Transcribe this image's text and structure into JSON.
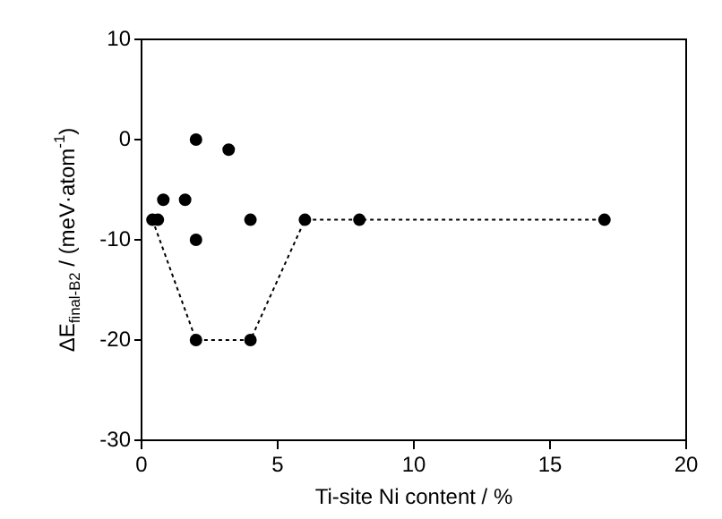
{
  "chart_data": {
    "type": "scatter",
    "xlabel": "Ti-site Ni content / %",
    "ylabel": "ΔE$_{final-B2}$ / (meV·atom$^{-1}$)",
    "xlim": [
      0,
      20
    ],
    "xticks": [
      0,
      5,
      10,
      15,
      20
    ],
    "ylim": [
      -30,
      10
    ],
    "yticks": [
      -30,
      -20,
      -10,
      0,
      10
    ],
    "grid": false,
    "legend": false,
    "series": [
      {
        "type": "scatter",
        "color": "#000000",
        "marker": "circle",
        "x": [
          0.4,
          0.6,
          0.8,
          1.6,
          2,
          2,
          2,
          3.2,
          4,
          4,
          6,
          8,
          17
        ],
        "values": [
          -8,
          -8,
          -6,
          -6,
          0,
          -10,
          -20,
          -1,
          -8,
          -20,
          -8,
          -8,
          -8
        ]
      },
      {
        "type": "line",
        "color": "#000000",
        "marker": "none",
        "line_style": "dotted",
        "x": [
          0.4,
          2,
          4,
          6,
          8,
          17
        ],
        "values": [
          -8,
          -20,
          -20,
          -8,
          -8,
          -8
        ]
      }
    ]
  }
}
